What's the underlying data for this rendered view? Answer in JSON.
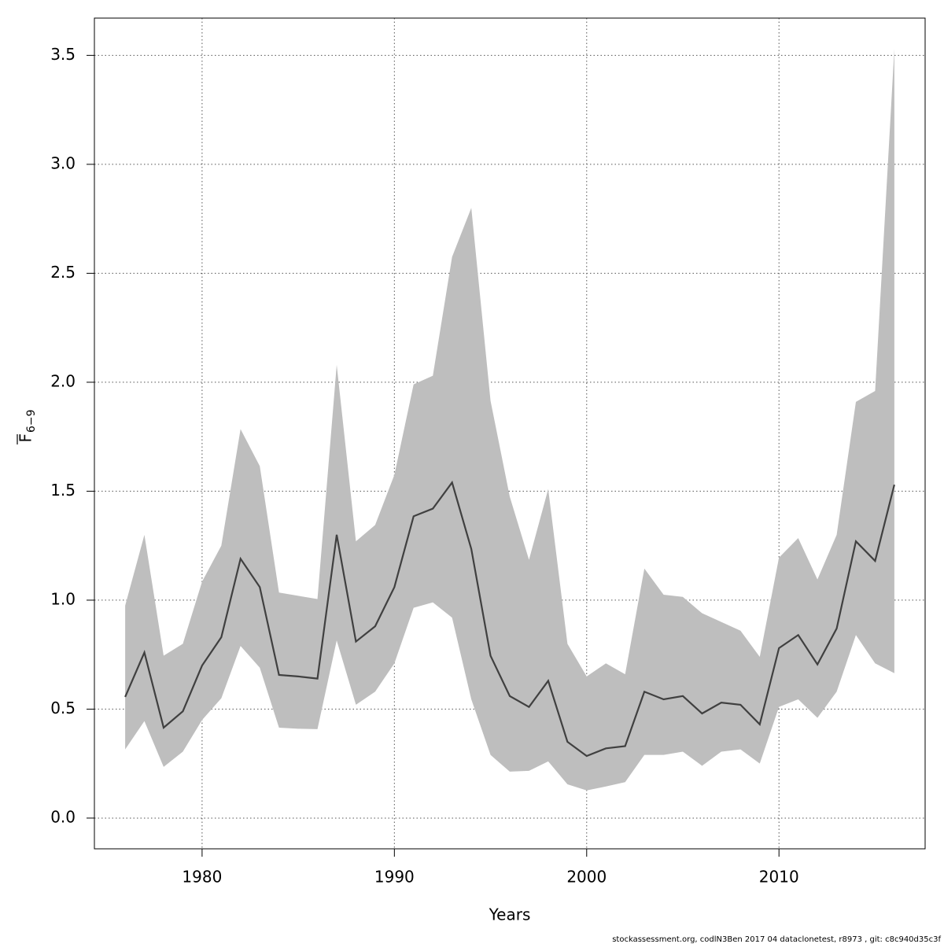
{
  "chart_data": {
    "type": "line_band",
    "x_label": "Years",
    "y_label": {
      "main": "F",
      "sub": "6−9"
    },
    "footer": "stockassessment.org, codlN3Ben 2017 04 dataclonetest, r8973 , git: c8c940d35c3f",
    "x": [
      1976,
      1977,
      1978,
      1979,
      1980,
      1981,
      1982,
      1983,
      1984,
      1985,
      1986,
      1987,
      1988,
      1989,
      1990,
      1991,
      1992,
      1993,
      1994,
      1995,
      1996,
      1997,
      1998,
      1999,
      2000,
      2001,
      2002,
      2003,
      2004,
      2005,
      2006,
      2007,
      2008,
      2009,
      2010,
      2011,
      2012,
      2013,
      2014,
      2015,
      2016
    ],
    "values": [
      0.556,
      0.76,
      0.415,
      0.49,
      0.7,
      0.83,
      1.19,
      1.06,
      0.657,
      0.65,
      0.64,
      1.3,
      0.81,
      0.88,
      1.06,
      1.385,
      1.42,
      1.54,
      1.235,
      0.745,
      0.56,
      0.51,
      0.63,
      0.35,
      0.285,
      0.32,
      0.33,
      0.58,
      0.545,
      0.56,
      0.48,
      0.53,
      0.52,
      0.43,
      0.78,
      0.84,
      0.705,
      0.87,
      1.27,
      1.18,
      1.53
    ],
    "upper": [
      0.975,
      1.3,
      0.745,
      0.8,
      1.085,
      1.25,
      1.785,
      1.615,
      1.035,
      1.02,
      1.005,
      2.08,
      1.27,
      1.345,
      1.575,
      1.99,
      2.03,
      2.575,
      2.8,
      1.915,
      1.475,
      1.185,
      1.51,
      0.8,
      0.65,
      0.71,
      0.66,
      1.145,
      1.025,
      1.015,
      0.94,
      0.9,
      0.86,
      0.74,
      1.195,
      1.285,
      1.095,
      1.3,
      1.91,
      1.96,
      3.53
    ],
    "lower": [
      0.315,
      0.445,
      0.235,
      0.305,
      0.45,
      0.55,
      0.79,
      0.69,
      0.415,
      0.41,
      0.408,
      0.815,
      0.52,
      0.58,
      0.71,
      0.965,
      0.99,
      0.92,
      0.545,
      0.29,
      0.213,
      0.217,
      0.26,
      0.155,
      0.127,
      0.145,
      0.165,
      0.29,
      0.29,
      0.305,
      0.24,
      0.305,
      0.315,
      0.25,
      0.51,
      0.545,
      0.46,
      0.58,
      0.84,
      0.71,
      0.665
    ],
    "color": "#404040",
    "band_color": "#bebebe",
    "xlim": [
      1974.4,
      2017.6
    ],
    "xticks": [
      1980,
      1990,
      2000,
      2010
    ],
    "ylim": [
      -0.141,
      3.671
    ],
    "yticks": [
      {
        "value": 0,
        "label": "0.0"
      },
      0.5,
      {
        "value": 1,
        "label": "1.0"
      },
      1.5,
      {
        "value": 2,
        "label": "2.0"
      },
      2.5,
      {
        "value": 3,
        "label": "3.0"
      },
      3.5
    ],
    "grid": true
  }
}
